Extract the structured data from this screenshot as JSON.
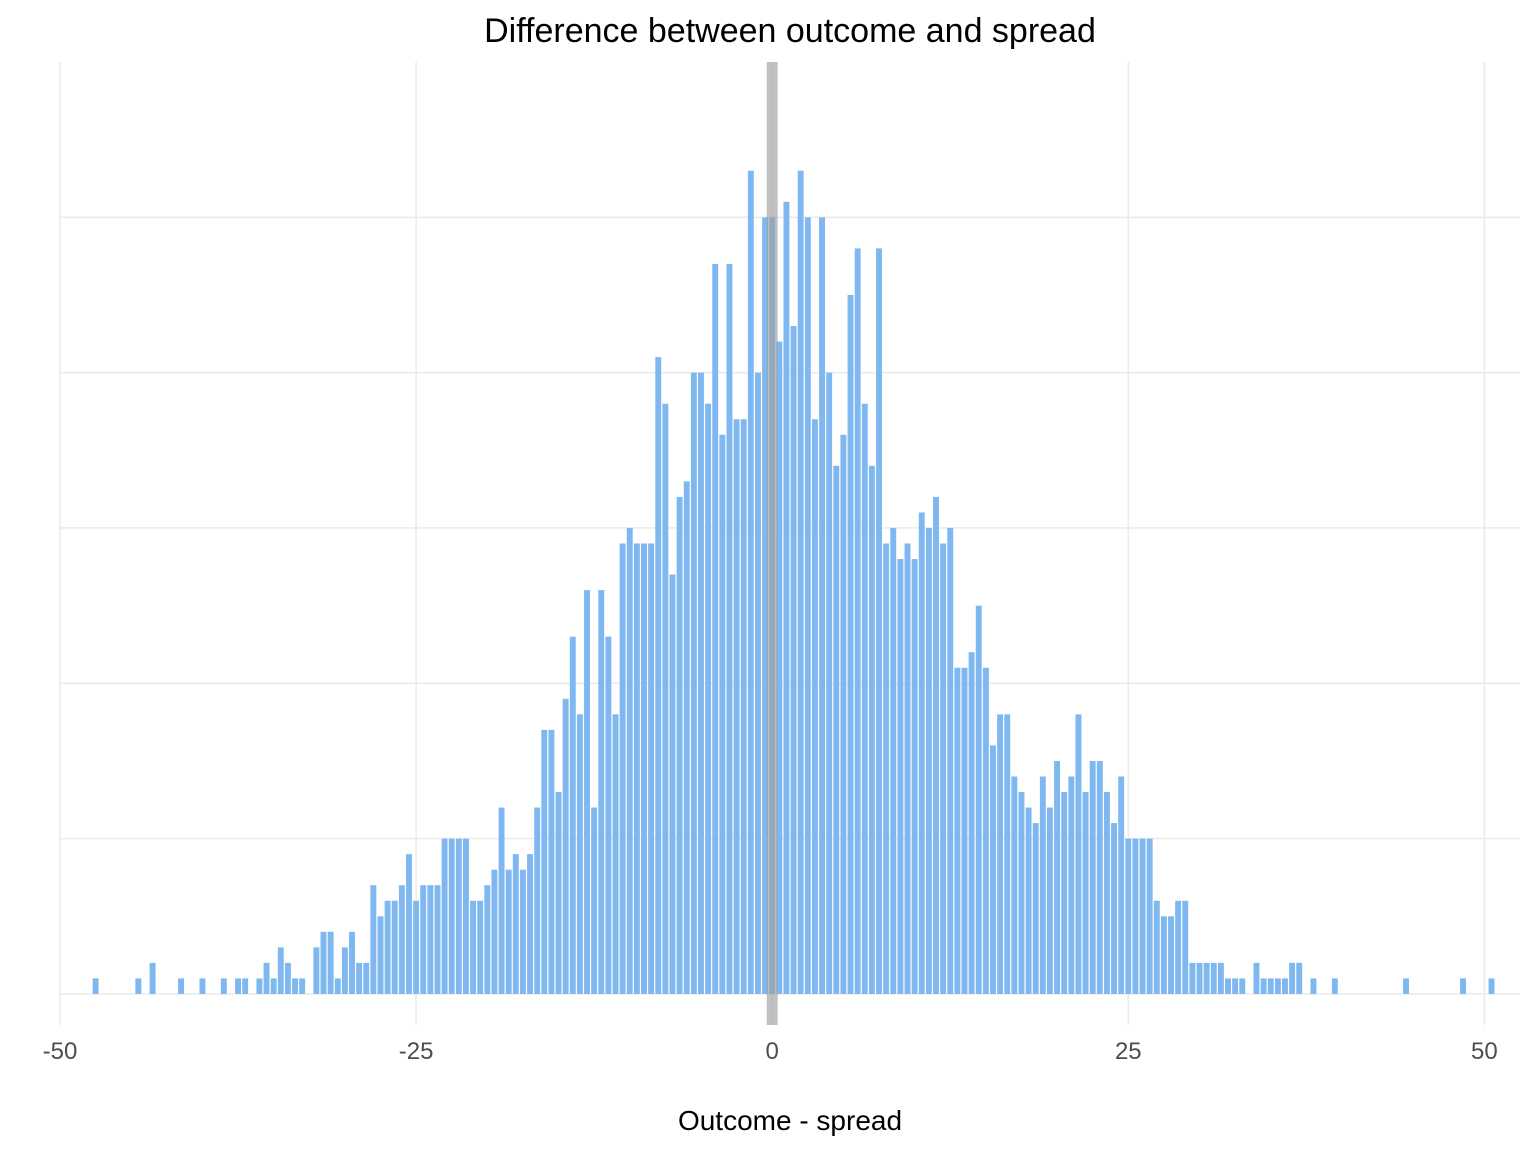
{
  "chart_data": {
    "type": "bar",
    "title": "Difference between outcome and spread",
    "xlabel": "Outcome - spread",
    "ylabel": "",
    "xlim": [
      -50,
      52.5
    ],
    "ylim": [
      -2,
      60
    ],
    "x_ticks": [
      -50,
      -25,
      0,
      25,
      50
    ],
    "x_tick_labels": [
      "-50",
      "-25",
      "0",
      "25",
      "50"
    ],
    "y_gridlines": [
      0,
      10,
      20,
      30,
      40,
      50
    ],
    "y_tick_labels_shown": false,
    "grid": true,
    "legend": "none",
    "bar_color": "#7fb7f0",
    "reference_line": {
      "x": 0,
      "color": "#a0a0a0"
    },
    "bins": [
      {
        "x": -47.5,
        "count": 1
      },
      {
        "x": -44.5,
        "count": 1
      },
      {
        "x": -43.5,
        "count": 2
      },
      {
        "x": -41.5,
        "count": 1
      },
      {
        "x": -40,
        "count": 1
      },
      {
        "x": -38.5,
        "count": 1
      },
      {
        "x": -37.5,
        "count": 1
      },
      {
        "x": -37,
        "count": 1
      },
      {
        "x": -36,
        "count": 1
      },
      {
        "x": -35.5,
        "count": 2
      },
      {
        "x": -35,
        "count": 1
      },
      {
        "x": -34.5,
        "count": 3
      },
      {
        "x": -34,
        "count": 2
      },
      {
        "x": -33.5,
        "count": 1
      },
      {
        "x": -33,
        "count": 1
      },
      {
        "x": -32,
        "count": 3
      },
      {
        "x": -31.5,
        "count": 4
      },
      {
        "x": -31,
        "count": 4
      },
      {
        "x": -30.5,
        "count": 1
      },
      {
        "x": -30,
        "count": 3
      },
      {
        "x": -29.5,
        "count": 4
      },
      {
        "x": -29,
        "count": 2
      },
      {
        "x": -28.5,
        "count": 2
      },
      {
        "x": -28,
        "count": 7
      },
      {
        "x": -27.5,
        "count": 5
      },
      {
        "x": -27,
        "count": 6
      },
      {
        "x": -26.5,
        "count": 6
      },
      {
        "x": -26,
        "count": 7
      },
      {
        "x": -25.5,
        "count": 9
      },
      {
        "x": -25,
        "count": 6
      },
      {
        "x": -24.5,
        "count": 7
      },
      {
        "x": -24,
        "count": 7
      },
      {
        "x": -23.5,
        "count": 7
      },
      {
        "x": -23,
        "count": 10
      },
      {
        "x": -22.5,
        "count": 10
      },
      {
        "x": -22,
        "count": 10
      },
      {
        "x": -21.5,
        "count": 10
      },
      {
        "x": -21,
        "count": 6
      },
      {
        "x": -20.5,
        "count": 6
      },
      {
        "x": -20,
        "count": 7
      },
      {
        "x": -19.5,
        "count": 8
      },
      {
        "x": -19,
        "count": 12
      },
      {
        "x": -18.5,
        "count": 8
      },
      {
        "x": -18,
        "count": 9
      },
      {
        "x": -17.5,
        "count": 8
      },
      {
        "x": -17,
        "count": 9
      },
      {
        "x": -16.5,
        "count": 12
      },
      {
        "x": -16,
        "count": 17
      },
      {
        "x": -15.5,
        "count": 17
      },
      {
        "x": -15,
        "count": 13
      },
      {
        "x": -14.5,
        "count": 19
      },
      {
        "x": -14,
        "count": 23
      },
      {
        "x": -13.5,
        "count": 18
      },
      {
        "x": -13,
        "count": 26
      },
      {
        "x": -12.5,
        "count": 12
      },
      {
        "x": -12,
        "count": 26
      },
      {
        "x": -11.5,
        "count": 23
      },
      {
        "x": -11,
        "count": 18
      },
      {
        "x": -10.5,
        "count": 29
      },
      {
        "x": -10,
        "count": 30
      },
      {
        "x": -9.5,
        "count": 29
      },
      {
        "x": -9,
        "count": 29
      },
      {
        "x": -8.5,
        "count": 29
      },
      {
        "x": -8,
        "count": 41
      },
      {
        "x": -7.5,
        "count": 38
      },
      {
        "x": -7,
        "count": 27
      },
      {
        "x": -6.5,
        "count": 32
      },
      {
        "x": -6,
        "count": 33
      },
      {
        "x": -5.5,
        "count": 40
      },
      {
        "x": -5,
        "count": 40
      },
      {
        "x": -4.5,
        "count": 38
      },
      {
        "x": -4,
        "count": 47
      },
      {
        "x": -3.5,
        "count": 36
      },
      {
        "x": -3,
        "count": 47
      },
      {
        "x": -2.5,
        "count": 37
      },
      {
        "x": -2,
        "count": 37
      },
      {
        "x": -1.5,
        "count": 53
      },
      {
        "x": -1,
        "count": 40
      },
      {
        "x": -0.5,
        "count": 50
      },
      {
        "x": 0,
        "count": 50
      },
      {
        "x": 0.5,
        "count": 42
      },
      {
        "x": 1,
        "count": 51
      },
      {
        "x": 1.5,
        "count": 43
      },
      {
        "x": 2,
        "count": 53
      },
      {
        "x": 2.5,
        "count": 50
      },
      {
        "x": 3,
        "count": 37
      },
      {
        "x": 3.5,
        "count": 50
      },
      {
        "x": 4,
        "count": 40
      },
      {
        "x": 4.5,
        "count": 34
      },
      {
        "x": 5,
        "count": 36
      },
      {
        "x": 5.5,
        "count": 45
      },
      {
        "x": 6,
        "count": 48
      },
      {
        "x": 6.5,
        "count": 38
      },
      {
        "x": 7,
        "count": 34
      },
      {
        "x": 7.5,
        "count": 48
      },
      {
        "x": 8,
        "count": 29
      },
      {
        "x": 8.5,
        "count": 30
      },
      {
        "x": 9,
        "count": 28
      },
      {
        "x": 9.5,
        "count": 29
      },
      {
        "x": 10,
        "count": 28
      },
      {
        "x": 10.5,
        "count": 31
      },
      {
        "x": 11,
        "count": 30
      },
      {
        "x": 11.5,
        "count": 32
      },
      {
        "x": 12,
        "count": 29
      },
      {
        "x": 12.5,
        "count": 30
      },
      {
        "x": 13,
        "count": 21
      },
      {
        "x": 13.5,
        "count": 21
      },
      {
        "x": 14,
        "count": 22
      },
      {
        "x": 14.5,
        "count": 25
      },
      {
        "x": 15,
        "count": 21
      },
      {
        "x": 15.5,
        "count": 16
      },
      {
        "x": 16,
        "count": 18
      },
      {
        "x": 16.5,
        "count": 18
      },
      {
        "x": 17,
        "count": 14
      },
      {
        "x": 17.5,
        "count": 13
      },
      {
        "x": 18,
        "count": 12
      },
      {
        "x": 18.5,
        "count": 11
      },
      {
        "x": 19,
        "count": 14
      },
      {
        "x": 19.5,
        "count": 12
      },
      {
        "x": 20,
        "count": 15
      },
      {
        "x": 20.5,
        "count": 13
      },
      {
        "x": 21,
        "count": 14
      },
      {
        "x": 21.5,
        "count": 18
      },
      {
        "x": 22,
        "count": 13
      },
      {
        "x": 22.5,
        "count": 15
      },
      {
        "x": 23,
        "count": 15
      },
      {
        "x": 23.5,
        "count": 13
      },
      {
        "x": 24,
        "count": 11
      },
      {
        "x": 24.5,
        "count": 14
      },
      {
        "x": 25,
        "count": 10
      },
      {
        "x": 25.5,
        "count": 10
      },
      {
        "x": 26,
        "count": 10
      },
      {
        "x": 26.5,
        "count": 10
      },
      {
        "x": 27,
        "count": 6
      },
      {
        "x": 27.5,
        "count": 5
      },
      {
        "x": 28,
        "count": 5
      },
      {
        "x": 28.5,
        "count": 6
      },
      {
        "x": 29,
        "count": 6
      },
      {
        "x": 29.5,
        "count": 2
      },
      {
        "x": 30,
        "count": 2
      },
      {
        "x": 30.5,
        "count": 2
      },
      {
        "x": 31,
        "count": 2
      },
      {
        "x": 31.5,
        "count": 2
      },
      {
        "x": 32,
        "count": 1
      },
      {
        "x": 32.5,
        "count": 1
      },
      {
        "x": 33,
        "count": 1
      },
      {
        "x": 34,
        "count": 2
      },
      {
        "x": 34.5,
        "count": 1
      },
      {
        "x": 35,
        "count": 1
      },
      {
        "x": 35.5,
        "count": 1
      },
      {
        "x": 36,
        "count": 1
      },
      {
        "x": 36.5,
        "count": 2
      },
      {
        "x": 37,
        "count": 2
      },
      {
        "x": 38,
        "count": 1
      },
      {
        "x": 39.5,
        "count": 1
      },
      {
        "x": 44.5,
        "count": 1
      },
      {
        "x": 48.5,
        "count": 1
      },
      {
        "x": 50.5,
        "count": 1
      }
    ]
  }
}
